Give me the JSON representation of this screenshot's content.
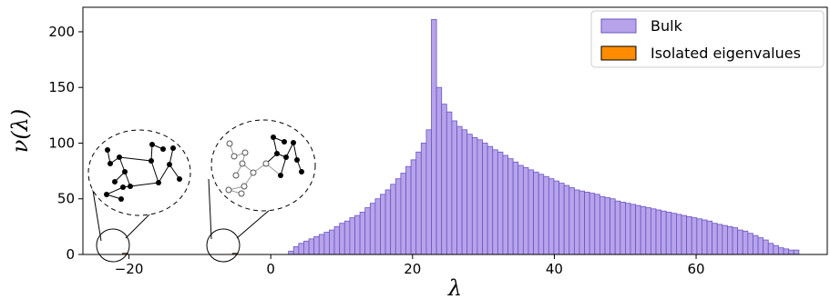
{
  "chart_data": {
    "type": "bar",
    "xlabel": "λ",
    "ylabel": "ν(λ)",
    "xlim": [
      -26.5,
      78.5
    ],
    "ylim": [
      0,
      222
    ],
    "x_ticks": [
      "−20",
      "0",
      "20",
      "40",
      "60"
    ],
    "x_tick_values": [
      -20,
      0,
      20,
      40,
      60
    ],
    "y_ticks": [
      "0",
      "50",
      "100",
      "150",
      "200"
    ],
    "y_tick_values": [
      0,
      50,
      100,
      150,
      200
    ],
    "grid": false,
    "legend_position": "top-right",
    "bin_width": 0.72,
    "series": [
      {
        "name": "Bulk",
        "color": "#b7a3ea",
        "edge_color": "#6a55c4",
        "bins": [
          [
            2.5,
            3
          ],
          [
            3.22,
            7
          ],
          [
            3.94,
            10
          ],
          [
            4.66,
            12
          ],
          [
            5.38,
            14
          ],
          [
            6.1,
            16
          ],
          [
            6.82,
            18
          ],
          [
            7.54,
            20
          ],
          [
            8.26,
            22
          ],
          [
            8.98,
            25
          ],
          [
            9.7,
            28
          ],
          [
            10.42,
            30
          ],
          [
            11.14,
            33
          ],
          [
            11.86,
            35
          ],
          [
            12.58,
            38
          ],
          [
            13.3,
            42
          ],
          [
            14.02,
            46
          ],
          [
            14.74,
            50
          ],
          [
            15.46,
            54
          ],
          [
            16.18,
            58
          ],
          [
            16.9,
            63
          ],
          [
            17.62,
            68
          ],
          [
            18.34,
            73
          ],
          [
            19.06,
            79
          ],
          [
            19.78,
            85
          ],
          [
            20.5,
            92
          ],
          [
            21.22,
            100
          ],
          [
            21.94,
            112
          ],
          [
            22.66,
            211
          ],
          [
            23.38,
            150
          ],
          [
            24.1,
            135
          ],
          [
            24.82,
            128
          ],
          [
            25.54,
            120
          ],
          [
            26.26,
            115
          ],
          [
            26.98,
            112
          ],
          [
            27.7,
            108
          ],
          [
            28.42,
            105
          ],
          [
            29.14,
            103
          ],
          [
            29.86,
            100
          ],
          [
            30.58,
            97
          ],
          [
            31.3,
            94
          ],
          [
            32.02,
            92
          ],
          [
            32.74,
            89
          ],
          [
            33.46,
            86
          ],
          [
            34.18,
            83
          ],
          [
            34.9,
            80
          ],
          [
            35.62,
            78
          ],
          [
            36.34,
            76
          ],
          [
            37.06,
            74
          ],
          [
            37.78,
            72
          ],
          [
            38.5,
            70
          ],
          [
            39.22,
            68
          ],
          [
            39.94,
            66
          ],
          [
            40.66,
            64
          ],
          [
            41.38,
            62
          ],
          [
            42.1,
            60
          ],
          [
            42.82,
            58
          ],
          [
            43.54,
            57
          ],
          [
            44.26,
            56
          ],
          [
            44.98,
            55
          ],
          [
            45.7,
            54
          ],
          [
            46.42,
            52
          ],
          [
            47.14,
            51
          ],
          [
            47.86,
            50
          ],
          [
            48.58,
            48
          ],
          [
            49.3,
            47
          ],
          [
            50.02,
            46
          ],
          [
            50.74,
            45
          ],
          [
            51.46,
            44
          ],
          [
            52.18,
            43
          ],
          [
            52.9,
            42
          ],
          [
            53.62,
            41
          ],
          [
            54.34,
            40
          ],
          [
            55.06,
            39
          ],
          [
            55.78,
            38
          ],
          [
            56.5,
            37
          ],
          [
            57.22,
            36
          ],
          [
            57.94,
            35
          ],
          [
            58.66,
            34
          ],
          [
            59.38,
            33
          ],
          [
            60.1,
            32
          ],
          [
            60.82,
            31
          ],
          [
            61.54,
            30
          ],
          [
            62.26,
            28
          ],
          [
            62.98,
            27
          ],
          [
            63.7,
            26
          ],
          [
            64.42,
            25
          ],
          [
            65.14,
            24
          ],
          [
            65.86,
            22
          ],
          [
            66.58,
            21
          ],
          [
            67.3,
            19
          ],
          [
            68.02,
            17
          ],
          [
            68.74,
            15
          ],
          [
            69.46,
            13
          ],
          [
            70.18,
            10
          ],
          [
            70.9,
            8
          ],
          [
            71.62,
            6
          ],
          [
            72.34,
            5
          ],
          [
            73.06,
            4
          ],
          [
            73.78,
            4
          ]
        ]
      },
      {
        "name": "Isolated eigenvalues",
        "color": "#ff8c00",
        "edge_color": "#000000",
        "bins": [
          [
            -20.9,
            1
          ],
          [
            -5.4,
            1
          ]
        ]
      }
    ]
  },
  "legend": {
    "items": [
      {
        "label": "Bulk"
      },
      {
        "label": "Isolated eigenvalues"
      }
    ]
  }
}
